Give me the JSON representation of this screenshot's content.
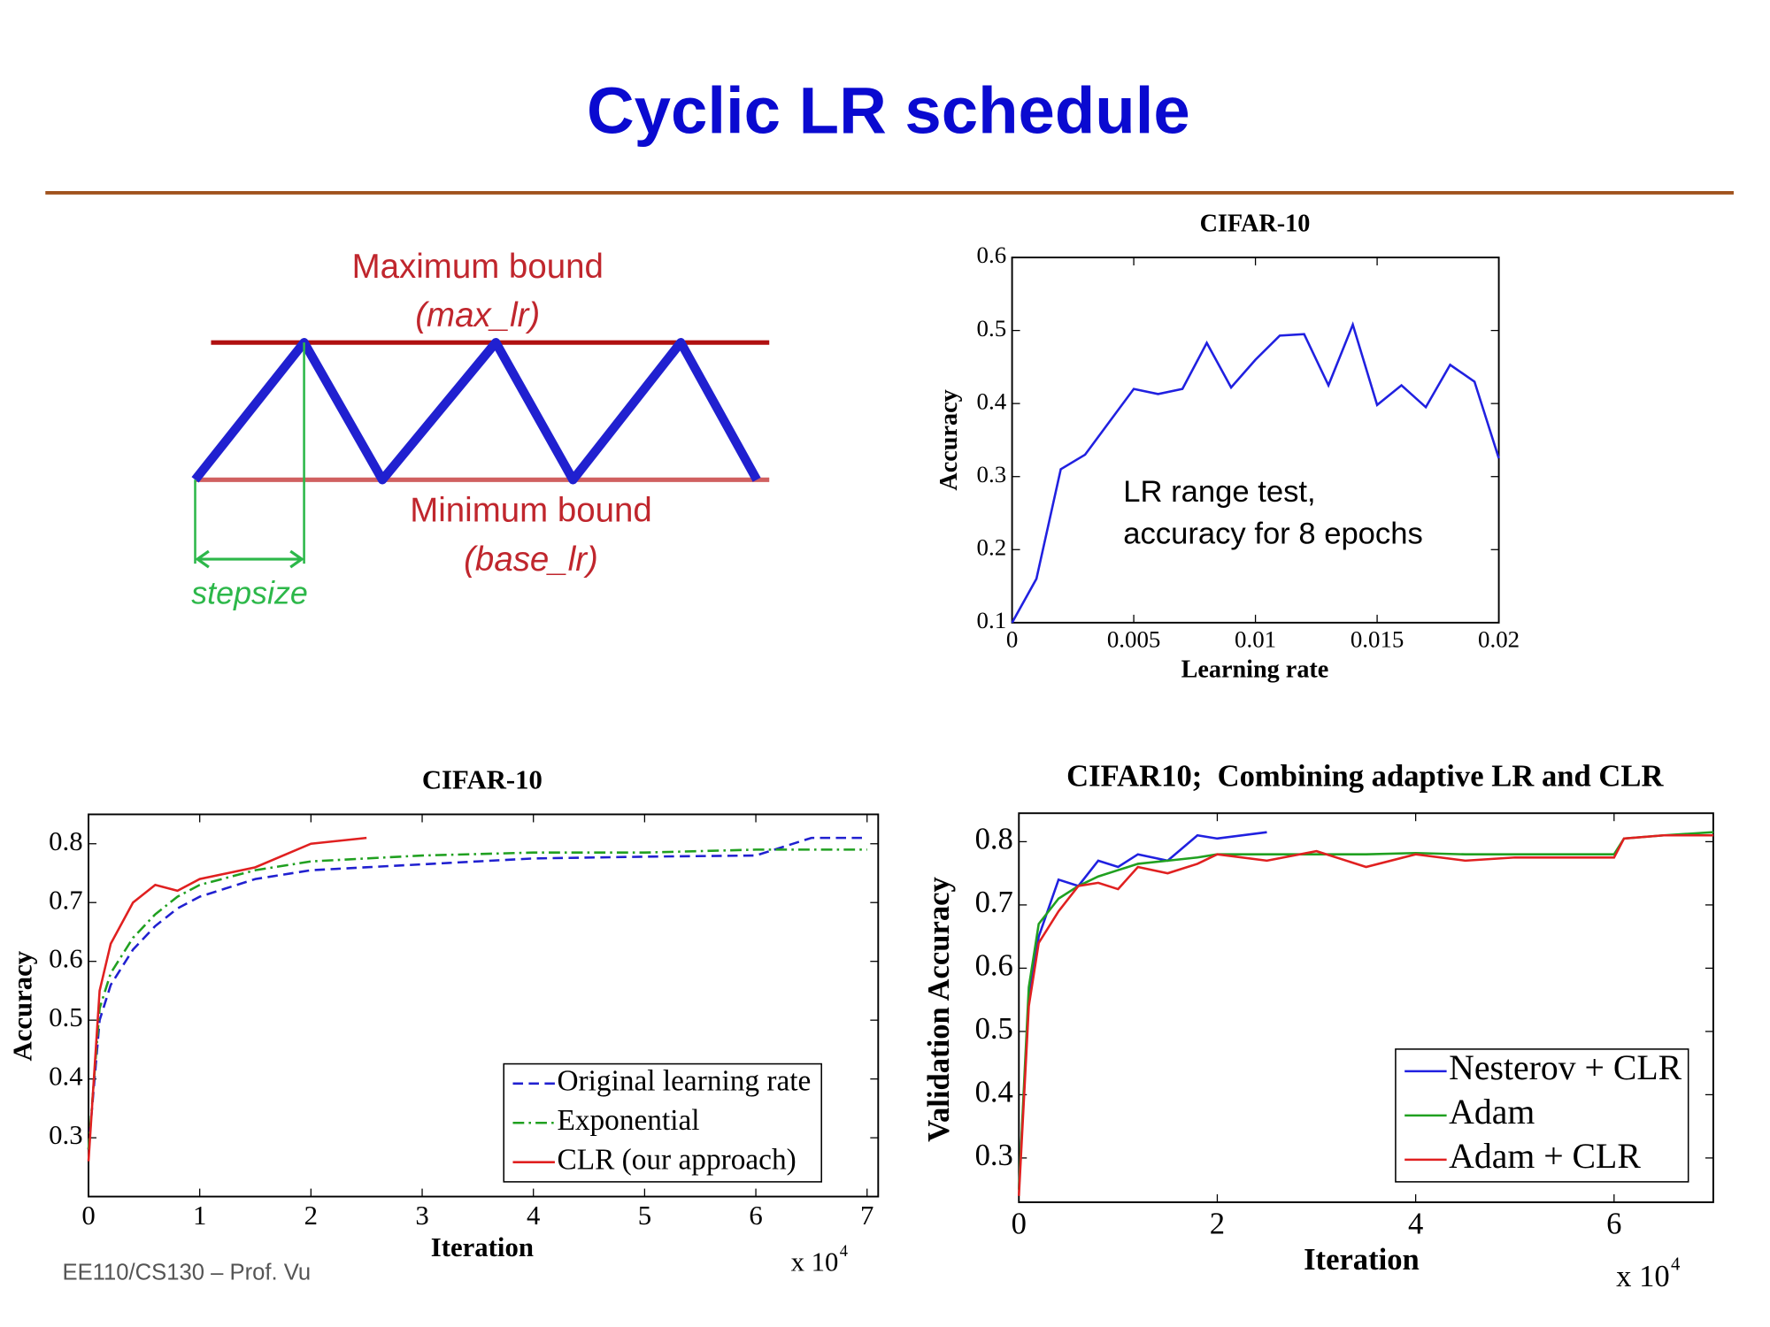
{
  "slide": {
    "title": "Cyclic LR schedule",
    "footer": "EE110/CS130 – Prof. Vu"
  },
  "diagram": {
    "max_label": "Maximum bound",
    "max_name": "(max_lr)",
    "min_label": "Minimum bound",
    "min_name": "(base_lr)",
    "step_label": "stepsize"
  },
  "chart_data": [
    {
      "type": "line",
      "title": "CIFAR-10",
      "x_label": "Learning rate",
      "y_label": "Accuracy",
      "annotation": [
        "LR range test,",
        "accuracy for 8 epochs"
      ],
      "x": [
        0,
        0.001,
        0.002,
        0.003,
        0.004,
        0.005,
        0.006,
        0.007,
        0.008,
        0.009,
        0.01,
        0.011,
        0.012,
        0.013,
        0.014,
        0.015,
        0.016,
        0.017,
        0.018,
        0.019,
        0.02
      ],
      "values": [
        0.1,
        0.16,
        0.31,
        0.33,
        0.375,
        0.42,
        0.413,
        0.42,
        0.483,
        0.422,
        0.46,
        0.493,
        0.495,
        0.425,
        0.508,
        0.398,
        0.425,
        0.395,
        0.453,
        0.43,
        0.325
      ],
      "color": "#2020e0",
      "linestyle": "solid",
      "xlim": [
        0,
        0.02
      ],
      "xticks": [
        0,
        0.005,
        0.01,
        0.015,
        0.02
      ],
      "ylim": [
        0.1,
        0.6
      ],
      "yticks": [
        0.1,
        0.2,
        0.3,
        0.4,
        0.5,
        0.6
      ]
    },
    {
      "type": "line",
      "title": "CIFAR-10",
      "x_label": "Iteration",
      "y_label": "Accuracy",
      "x_multiplier": {
        "base": "x 10",
        "exponent": "4"
      },
      "x": [
        0,
        0.1,
        0.2,
        0.4,
        0.6,
        0.8,
        1,
        1.5,
        2,
        2.5,
        3,
        4,
        5,
        6,
        6.5,
        7
      ],
      "series": [
        {
          "name": "Original learning rate",
          "color": "#2020d0",
          "linestyle": "dashed",
          "values": [
            0.28,
            0.5,
            0.56,
            0.62,
            0.66,
            0.69,
            0.71,
            0.74,
            0.755,
            0.76,
            0.765,
            0.775,
            0.778,
            0.78,
            0.81,
            0.81
          ]
        },
        {
          "name": "Exponential",
          "color": "#20a020",
          "linestyle": "dashdot",
          "values": [
            0.28,
            0.52,
            0.58,
            0.64,
            0.68,
            0.71,
            0.73,
            0.755,
            0.77,
            0.775,
            0.78,
            0.785,
            0.785,
            0.79,
            0.79,
            0.79
          ]
        },
        {
          "name": "CLR (our approach)",
          "color": "#e02020",
          "linestyle": "solid",
          "values": [
            0.26,
            0.55,
            0.63,
            0.7,
            0.73,
            0.72,
            0.74,
            0.76,
            0.8,
            0.81,
            null,
            null,
            null,
            null,
            null,
            null
          ]
        }
      ],
      "legend": "lower right",
      "xlim": [
        0,
        7.1
      ],
      "xticks": [
        0,
        1,
        2,
        3,
        4,
        5,
        6,
        7
      ],
      "ylim": [
        0.2,
        0.85
      ],
      "yticks": [
        0.3,
        0.4,
        0.5,
        0.6,
        0.7,
        0.8
      ]
    },
    {
      "type": "line",
      "title": "CIFAR10;  Combining adaptive LR and CLR",
      "x_label": "Iteration",
      "y_label": "Validation Accuracy",
      "x_multiplier": {
        "base": "x 10",
        "exponent": "4"
      },
      "x": [
        0,
        0.1,
        0.2,
        0.4,
        0.6,
        0.8,
        1,
        1.2,
        1.5,
        1.8,
        2,
        2.5,
        3,
        3.5,
        4,
        4.5,
        5,
        5.5,
        6,
        6.1,
        6.5,
        7
      ],
      "series": [
        {
          "name": "Nesterov + CLR",
          "color": "#2020e0",
          "linestyle": "solid",
          "values": [
            0.25,
            0.55,
            0.65,
            0.74,
            0.73,
            0.77,
            0.76,
            0.78,
            0.77,
            0.81,
            0.805,
            0.815,
            null,
            null,
            null,
            null,
            null,
            null,
            null,
            null,
            null,
            null
          ]
        },
        {
          "name": "Adam",
          "color": "#20a020",
          "linestyle": "solid",
          "values": [
            0.25,
            0.57,
            0.67,
            0.71,
            0.73,
            0.745,
            0.755,
            0.765,
            0.77,
            0.775,
            0.78,
            0.78,
            0.78,
            0.78,
            0.782,
            0.78,
            0.78,
            0.78,
            0.78,
            0.805,
            0.81,
            0.815
          ]
        },
        {
          "name": "Adam + CLR",
          "color": "#e02020",
          "linestyle": "solid",
          "values": [
            0.24,
            0.54,
            0.64,
            0.69,
            0.73,
            0.735,
            0.725,
            0.76,
            0.75,
            0.765,
            0.78,
            0.77,
            0.785,
            0.76,
            0.78,
            0.77,
            0.775,
            0.775,
            0.775,
            0.805,
            0.81,
            0.81
          ]
        }
      ],
      "legend": "lower right",
      "xlim": [
        0,
        7
      ],
      "xticks": [
        0,
        2,
        4,
        6
      ],
      "ylim": [
        0.23,
        0.845
      ],
      "yticks": [
        0.3,
        0.4,
        0.5,
        0.6,
        0.7,
        0.8
      ]
    }
  ]
}
